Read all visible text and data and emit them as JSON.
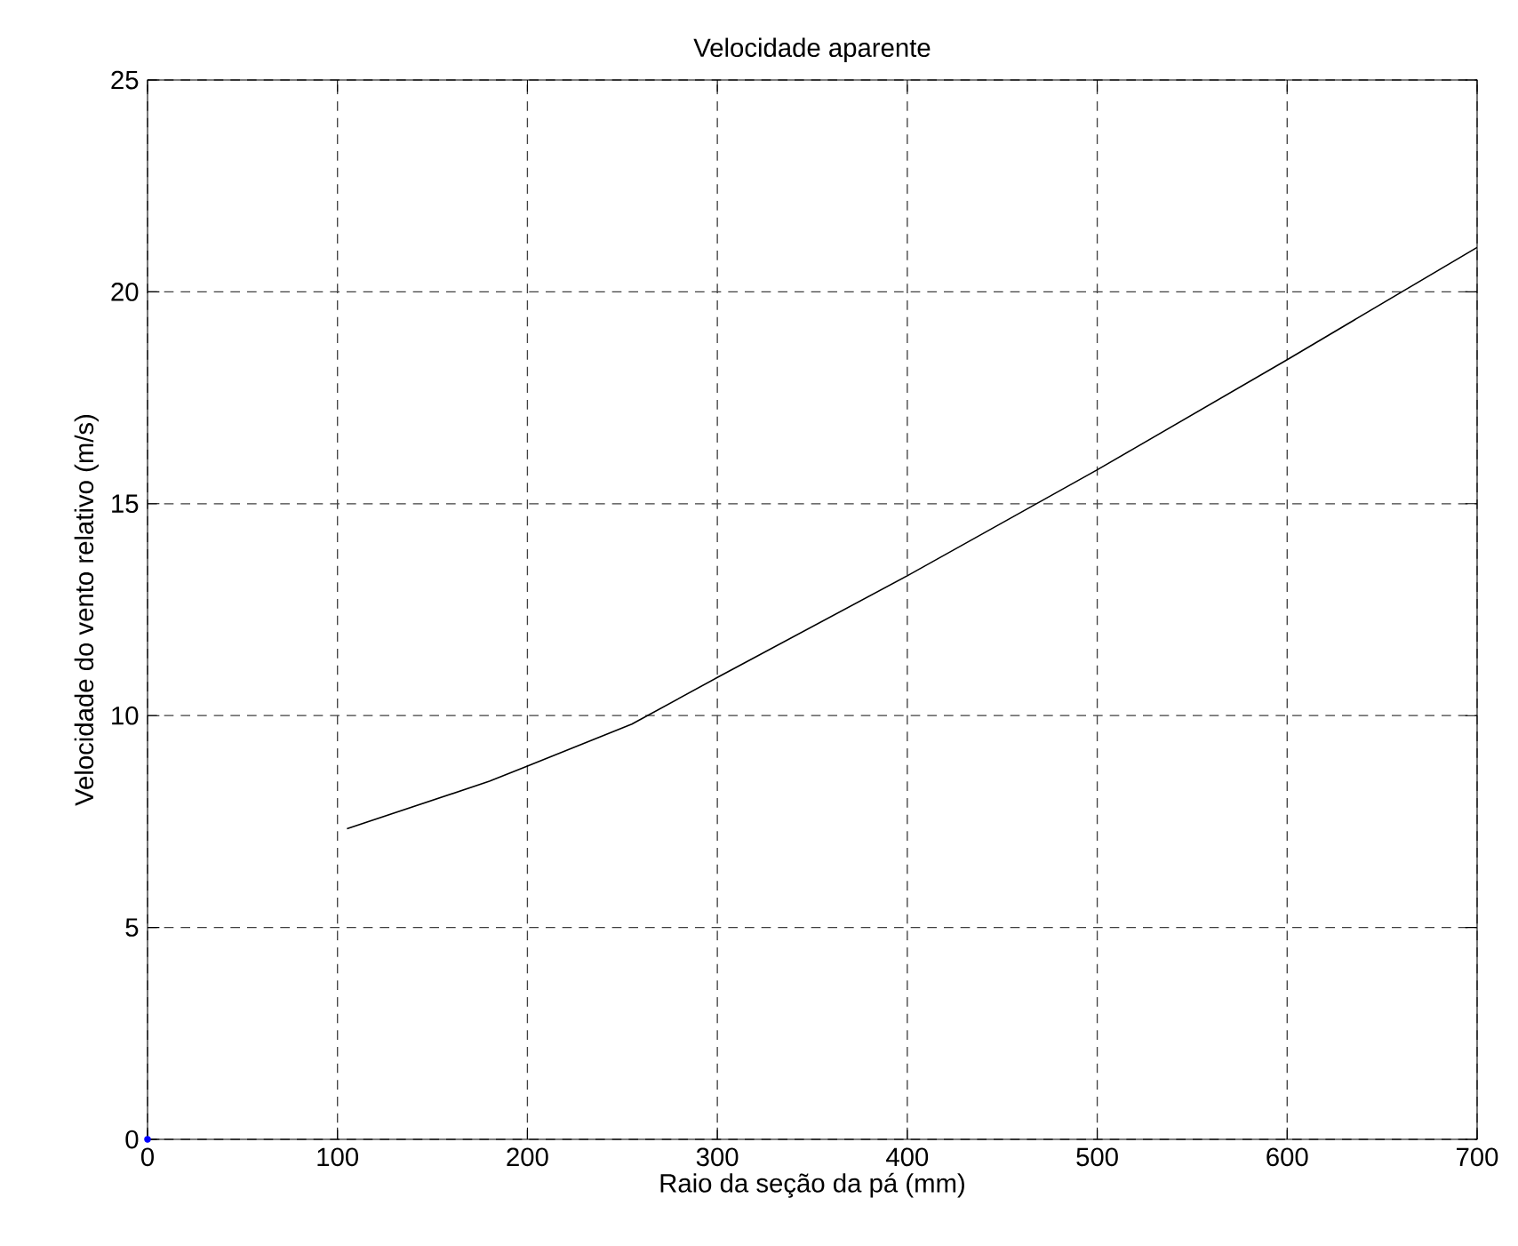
{
  "chart_data": {
    "type": "line",
    "title": "Velocidade aparente",
    "xlabel": "Raio da seção da pá (mm)",
    "ylabel": "Velocidade do vento relativo (m/s)",
    "series": [
      {
        "color": "#000000",
        "x": [
          105,
          180,
          200,
          255,
          300,
          400,
          500,
          600,
          700
        ],
        "values": [
          7.33,
          8.45,
          8.81,
          9.8,
          10.9,
          13.3,
          15.8,
          18.4,
          21.05
        ]
      },
      {
        "type": "scatter",
        "color": "#0000ff",
        "x": [
          0
        ],
        "values": [
          0
        ]
      }
    ],
    "xlim": [
      0,
      700
    ],
    "ylim": [
      0,
      25
    ],
    "xticks": [
      0,
      100,
      200,
      300,
      400,
      500,
      600,
      700
    ],
    "yticks": [
      0,
      5,
      10,
      15,
      20,
      25
    ],
    "grid": true
  }
}
